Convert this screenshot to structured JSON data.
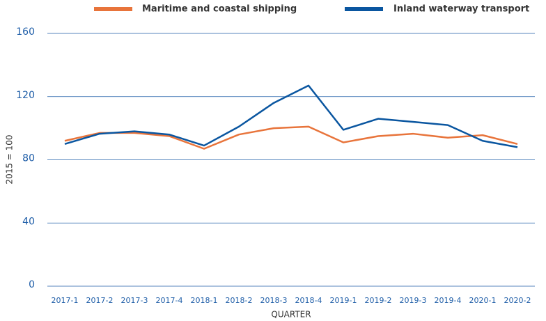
{
  "chart_data": {
    "type": "line",
    "categories": [
      "2017-1",
      "2017-2",
      "2017-3",
      "2017-4",
      "2018-1",
      "2018-2",
      "2018-3",
      "2018-4",
      "2019-1",
      "2019-2",
      "2019-3",
      "2019-4",
      "2020-1",
      "2020-2"
    ],
    "series": [
      {
        "name": "Maritime and coastal shipping",
        "color": "#e8743b",
        "values": [
          92,
          97,
          97,
          95,
          87,
          96,
          100,
          101,
          91,
          95,
          96.5,
          94,
          95.6,
          90
        ]
      },
      {
        "name": "Inland waterway transport",
        "color": "#0a56a0",
        "values": [
          90,
          96.5,
          98,
          96,
          89,
          101,
          116,
          127,
          99,
          106,
          104,
          102,
          92,
          88
        ]
      }
    ],
    "x_label": "QUARTER",
    "y_label": "2015 = 100",
    "ylim": [
      0,
      160
    ],
    "yticks": [
      0,
      40,
      80,
      120,
      160
    ],
    "grid": true,
    "legend": "top"
  }
}
